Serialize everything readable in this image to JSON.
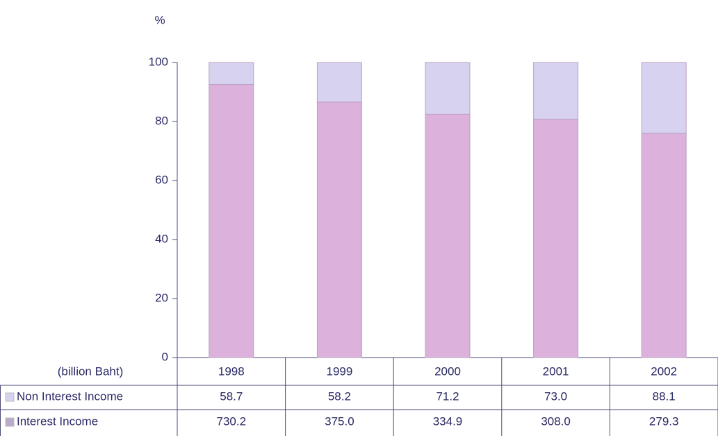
{
  "chart_data": {
    "type": "stacked_bar",
    "y_label": "%",
    "ylim": [
      0,
      100
    ],
    "yticks": [
      0,
      20,
      40,
      60,
      80,
      100
    ],
    "categories": [
      "1998",
      "1999",
      "2000",
      "2001",
      "2002"
    ],
    "series": [
      {
        "name": "Interest Income",
        "color": "#dcb1dc",
        "legend_color": "#b9acc9",
        "values": [
          92.6,
          86.6,
          82.5,
          80.8,
          76.0
        ],
        "table_values": [
          "730.2",
          "375.0",
          "334.9",
          "308.0",
          "279.3"
        ]
      },
      {
        "name": "Non Interest Income",
        "color": "#d6d2f0",
        "legend_color": "#d6d2f0",
        "values": [
          7.4,
          13.4,
          17.5,
          19.2,
          24.0
        ],
        "table_values": [
          "58.7",
          "58.2",
          "71.2",
          "73.0",
          "88.1"
        ]
      }
    ],
    "table_header": "(billion Baht)"
  }
}
